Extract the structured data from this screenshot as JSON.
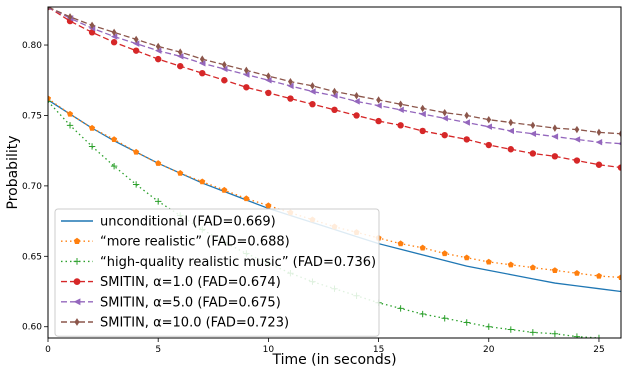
{
  "chart_data": {
    "type": "line",
    "xlabel": "Time (in seconds)",
    "ylabel": "Probability",
    "xlim": [
      0,
      26
    ],
    "ylim": [
      0.592,
      0.827
    ],
    "xticks": [
      0,
      5,
      10,
      15,
      20,
      25
    ],
    "yticks": [
      0.6,
      0.65,
      0.7,
      0.75,
      0.8
    ],
    "xtick_labels": [
      "0",
      "5",
      "10",
      "15",
      "20",
      "25"
    ],
    "ytick_labels": [
      "0.60",
      "0.65",
      "0.70",
      "0.75",
      "0.80"
    ],
    "grid": false,
    "legend_position": "lower-left",
    "series": [
      {
        "name": "unconditional (FAD=0.669)",
        "color": "#1f77b4",
        "linestyle": "solid",
        "marker": "none",
        "x": [
          0,
          1,
          2,
          3,
          4,
          5,
          6,
          7,
          8,
          9,
          10,
          11,
          12,
          13,
          14,
          15,
          16,
          17,
          18,
          19,
          20,
          21,
          22,
          23,
          24,
          25,
          26
        ],
        "y": [
          0.761,
          0.751,
          0.741,
          0.732,
          0.724,
          0.716,
          0.709,
          0.702,
          0.696,
          0.69,
          0.684,
          0.679,
          0.674,
          0.669,
          0.664,
          0.659,
          0.655,
          0.651,
          0.647,
          0.643,
          0.64,
          0.637,
          0.634,
          0.631,
          0.629,
          0.627,
          0.625
        ]
      },
      {
        "name": "“more realistic” (FAD=0.688)",
        "color": "#ff7f0e",
        "linestyle": "dotted",
        "marker": "pentagon",
        "x": [
          0,
          1,
          2,
          3,
          4,
          5,
          6,
          7,
          8,
          9,
          10,
          11,
          12,
          13,
          14,
          15,
          16,
          17,
          18,
          19,
          20,
          21,
          22,
          23,
          24,
          25,
          26
        ],
        "y": [
          0.762,
          0.751,
          0.741,
          0.733,
          0.724,
          0.716,
          0.709,
          0.703,
          0.697,
          0.691,
          0.686,
          0.681,
          0.676,
          0.671,
          0.667,
          0.663,
          0.659,
          0.656,
          0.652,
          0.649,
          0.646,
          0.644,
          0.642,
          0.64,
          0.638,
          0.636,
          0.635
        ]
      },
      {
        "name": "“high-quality realistic music” (FAD=0.736)",
        "color": "#2ca02c",
        "linestyle": "dotted",
        "marker": "plus",
        "x": [
          0,
          1,
          2,
          3,
          4,
          5,
          6,
          7,
          8,
          9,
          10,
          11,
          12,
          13,
          14,
          15,
          16,
          17,
          18,
          19,
          20,
          21,
          22,
          23,
          24,
          25,
          26
        ],
        "y": [
          0.76,
          0.743,
          0.728,
          0.714,
          0.701,
          0.689,
          0.679,
          0.669,
          0.66,
          0.652,
          0.645,
          0.638,
          0.632,
          0.627,
          0.622,
          0.617,
          0.613,
          0.609,
          0.606,
          0.603,
          0.6,
          0.598,
          0.596,
          0.595,
          0.593,
          0.592,
          0.591
        ]
      },
      {
        "name": "SMITIN, α=1.0 (FAD=0.674)",
        "color": "#d62728",
        "linestyle": "dashed",
        "marker": "circle",
        "x": [
          0,
          1,
          2,
          3,
          4,
          5,
          6,
          7,
          8,
          9,
          10,
          11,
          12,
          13,
          14,
          15,
          16,
          17,
          18,
          19,
          20,
          21,
          22,
          23,
          24,
          25,
          26
        ],
        "y": [
          0.827,
          0.817,
          0.809,
          0.802,
          0.796,
          0.79,
          0.785,
          0.78,
          0.775,
          0.77,
          0.766,
          0.762,
          0.758,
          0.754,
          0.75,
          0.746,
          0.743,
          0.739,
          0.736,
          0.733,
          0.729,
          0.726,
          0.723,
          0.721,
          0.718,
          0.715,
          0.713
        ]
      },
      {
        "name": "SMITIN, α=5.0 (FAD=0.675)",
        "color": "#9467bd",
        "linestyle": "dashed",
        "marker": "triangle-left",
        "x": [
          0,
          1,
          2,
          3,
          4,
          5,
          6,
          7,
          8,
          9,
          10,
          11,
          12,
          13,
          14,
          15,
          16,
          17,
          18,
          19,
          20,
          21,
          22,
          23,
          24,
          25,
          26
        ],
        "y": [
          0.827,
          0.819,
          0.812,
          0.806,
          0.801,
          0.796,
          0.792,
          0.787,
          0.783,
          0.779,
          0.775,
          0.771,
          0.767,
          0.764,
          0.76,
          0.757,
          0.754,
          0.751,
          0.748,
          0.745,
          0.742,
          0.739,
          0.737,
          0.735,
          0.733,
          0.731,
          0.73
        ]
      },
      {
        "name": "SMITIN, α=10.0 (FAD=0.723)",
        "color": "#8c564b",
        "linestyle": "dashed",
        "marker": "diamond",
        "x": [
          0,
          1,
          2,
          3,
          4,
          5,
          6,
          7,
          8,
          9,
          10,
          11,
          12,
          13,
          14,
          15,
          16,
          17,
          18,
          19,
          20,
          21,
          22,
          23,
          24,
          25,
          26
        ],
        "y": [
          0.827,
          0.82,
          0.814,
          0.809,
          0.804,
          0.799,
          0.795,
          0.79,
          0.786,
          0.782,
          0.778,
          0.774,
          0.771,
          0.767,
          0.764,
          0.761,
          0.758,
          0.755,
          0.752,
          0.75,
          0.747,
          0.745,
          0.743,
          0.741,
          0.74,
          0.738,
          0.737
        ]
      }
    ]
  }
}
